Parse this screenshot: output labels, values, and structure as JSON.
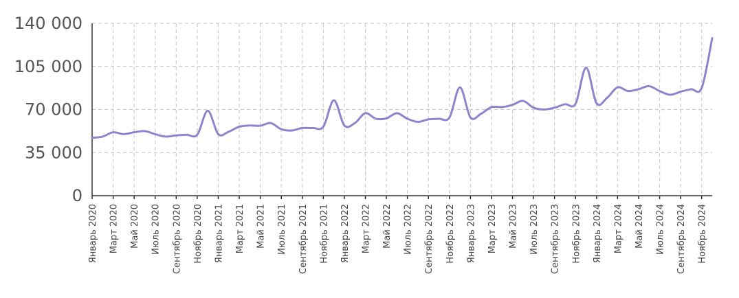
{
  "colors": {
    "series": "#8a85cc",
    "grid": "#cccccc",
    "axis": "#333333"
  },
  "chart_data": {
    "type": "line",
    "title": "",
    "xlabel": "",
    "ylabel": "",
    "ylim": [
      0,
      140000
    ],
    "y_ticks": [
      {
        "value": 0,
        "label": "0"
      },
      {
        "value": 35000,
        "label": "35 000"
      },
      {
        "value": 70000,
        "label": "70 000"
      },
      {
        "value": 105000,
        "label": "105 000"
      },
      {
        "value": 140000,
        "label": "140 000"
      }
    ],
    "grid": true,
    "legend": "none",
    "x_tick_labels": [
      "Январь 2020",
      "Март 2020",
      "Май 2020",
      "Июль 2020",
      "Сентябрь 2020",
      "Ноябрь 2020",
      "Январь 2021",
      "Март 2021",
      "Май 2021",
      "Июль 2021",
      "Сентябрь 2021",
      "Ноябрь 2021",
      "Январь 2022",
      "Март 2022",
      "Май 2022",
      "Июль 2022",
      "Сентябрь 2022",
      "Ноябрь 2022",
      "Январь 2023",
      "Март 2023",
      "Май 2023",
      "Июль 2023",
      "Сентябрь 2023",
      "Ноябрь 2023",
      "Январь 2024",
      "Март 2024",
      "Май 2024",
      "Июль 2024",
      "Сентябрь 2024",
      "Ноябрь 2024"
    ],
    "x": [
      "2020-01",
      "2020-02",
      "2020-03",
      "2020-04",
      "2020-05",
      "2020-06",
      "2020-07",
      "2020-08",
      "2020-09",
      "2020-10",
      "2020-11",
      "2020-12",
      "2021-01",
      "2021-02",
      "2021-03",
      "2021-04",
      "2021-05",
      "2021-06",
      "2021-07",
      "2021-08",
      "2021-09",
      "2021-10",
      "2021-11",
      "2021-12",
      "2022-01",
      "2022-02",
      "2022-03",
      "2022-04",
      "2022-05",
      "2022-06",
      "2022-07",
      "2022-08",
      "2022-09",
      "2022-10",
      "2022-11",
      "2022-12",
      "2023-01",
      "2023-02",
      "2023-03",
      "2023-04",
      "2023-05",
      "2023-06",
      "2023-07",
      "2023-08",
      "2023-09",
      "2023-10",
      "2023-11",
      "2023-12",
      "2024-01",
      "2024-02",
      "2024-03",
      "2024-04",
      "2024-05",
      "2024-06",
      "2024-07",
      "2024-08",
      "2024-09",
      "2024-10",
      "2024-11",
      "2024-12"
    ],
    "series": [
      {
        "values": [
          47000,
          48000,
          51500,
          50000,
          51500,
          52500,
          50000,
          48000,
          49000,
          49500,
          49500,
          69000,
          50000,
          52000,
          56000,
          57000,
          56800,
          59000,
          54000,
          53000,
          55000,
          55000,
          56000,
          77500,
          57000,
          59000,
          67000,
          62500,
          62800,
          67000,
          62500,
          60000,
          62000,
          62500,
          63500,
          88000,
          63500,
          66500,
          72000,
          72000,
          73800,
          77000,
          71500,
          70000,
          71500,
          74300,
          74700,
          104000,
          75000,
          79500,
          88000,
          85000,
          86500,
          89000,
          85000,
          82000,
          84500,
          86500,
          87500,
          128000
        ]
      }
    ]
  }
}
